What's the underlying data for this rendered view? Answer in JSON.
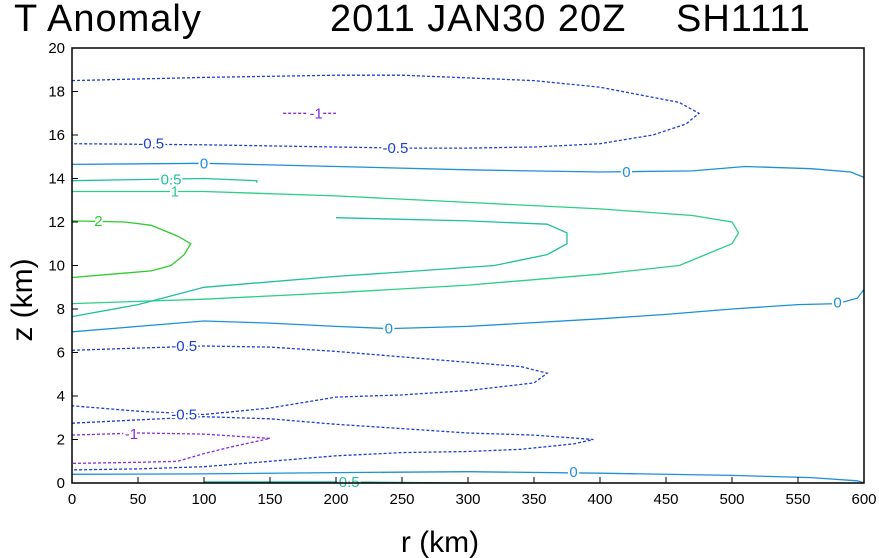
{
  "chart_data": {
    "type": "contour",
    "title_left": "T Anomaly",
    "title_date": "2011 JAN30 20Z",
    "title_storm": "SH1111",
    "xlabel": "r (km)",
    "ylabel": "z (km)",
    "xlim": [
      0,
      600
    ],
    "ylim": [
      0,
      20
    ],
    "xticks": [
      0,
      50,
      100,
      150,
      200,
      250,
      300,
      350,
      400,
      450,
      500,
      550,
      600
    ],
    "yticks": [
      0,
      2,
      4,
      6,
      8,
      10,
      12,
      14,
      16,
      18,
      20
    ],
    "colors": {
      "neg_1": "#8a2be2",
      "neg_05": "#1a3fd6",
      "zero": "#1e90d6",
      "pos_05": "#1fbfa0",
      "pos_1": "#2bcf8a",
      "pos_2": "#2ecc2e"
    },
    "contours": [
      {
        "level": "-0.5",
        "dash": true,
        "color_key": "neg_05",
        "points": [
          [
            0,
            18.5
          ],
          [
            100,
            18.65
          ],
          [
            200,
            18.75
          ],
          [
            250,
            18.75
          ],
          [
            350,
            18.5
          ],
          [
            400,
            18.2
          ],
          [
            460,
            17.5
          ],
          [
            475,
            17.0
          ],
          [
            465,
            16.5
          ],
          [
            440,
            16.0
          ],
          [
            400,
            15.6
          ],
          [
            350,
            15.45
          ],
          [
            300,
            15.4
          ],
          [
            250,
            15.4
          ],
          [
            200,
            15.45
          ],
          [
            100,
            15.55
          ],
          [
            0,
            15.6
          ]
        ]
      },
      {
        "level": "-1",
        "dash": true,
        "color_key": "neg_1",
        "points": [
          [
            160,
            17.0
          ],
          [
            200,
            17.0
          ]
        ]
      },
      {
        "level": "0",
        "dash": false,
        "color_key": "zero",
        "points": [
          [
            0,
            14.65
          ],
          [
            100,
            14.7
          ],
          [
            200,
            14.55
          ],
          [
            300,
            14.4
          ],
          [
            400,
            14.3
          ],
          [
            470,
            14.35
          ],
          [
            510,
            14.55
          ],
          [
            560,
            14.45
          ],
          [
            590,
            14.3
          ],
          [
            600,
            14.05
          ]
        ]
      },
      {
        "level": "0.5",
        "dash": false,
        "color_key": "pos_05",
        "points": [
          [
            0,
            13.9
          ],
          [
            100,
            14.0
          ],
          [
            140,
            13.9
          ],
          [
            140,
            13.8
          ]
        ]
      },
      {
        "level": "1",
        "dash": false,
        "color_key": "pos_1",
        "points": [
          [
            0,
            13.4
          ],
          [
            100,
            13.4
          ],
          [
            200,
            13.2
          ],
          [
            300,
            12.9
          ],
          [
            400,
            12.6
          ],
          [
            470,
            12.3
          ],
          [
            500,
            12.0
          ],
          [
            505,
            11.5
          ],
          [
            500,
            11.0
          ],
          [
            480,
            10.5
          ],
          [
            460,
            10.0
          ],
          [
            400,
            9.6
          ],
          [
            300,
            9.1
          ],
          [
            200,
            8.75
          ],
          [
            100,
            8.45
          ],
          [
            0,
            8.25
          ]
        ]
      },
      {
        "level": "0.5",
        "dash": false,
        "color_key": "pos_05",
        "points": [
          [
            200,
            12.2
          ],
          [
            300,
            12.05
          ],
          [
            360,
            11.9
          ],
          [
            375,
            11.5
          ],
          [
            375,
            11.0
          ],
          [
            360,
            10.5
          ],
          [
            320,
            10.0
          ],
          [
            250,
            9.7
          ],
          [
            200,
            9.5
          ],
          [
            100,
            9.0
          ],
          [
            50,
            8.2
          ],
          [
            0,
            7.65
          ]
        ]
      },
      {
        "level": "2",
        "dash": false,
        "color_key": "pos_2",
        "points": [
          [
            0,
            12.05
          ],
          [
            40,
            12.0
          ],
          [
            60,
            11.85
          ],
          [
            80,
            11.35
          ],
          [
            90,
            11.0
          ],
          [
            85,
            10.5
          ],
          [
            75,
            10.0
          ],
          [
            60,
            9.75
          ],
          [
            30,
            9.6
          ],
          [
            0,
            9.45
          ]
        ]
      },
      {
        "level": "0",
        "dash": false,
        "color_key": "zero",
        "points": [
          [
            0,
            6.95
          ],
          [
            50,
            7.2
          ],
          [
            100,
            7.45
          ],
          [
            150,
            7.35
          ],
          [
            200,
            7.2
          ],
          [
            240,
            7.1
          ],
          [
            300,
            7.2
          ],
          [
            400,
            7.55
          ],
          [
            450,
            7.75
          ],
          [
            500,
            8.0
          ],
          [
            550,
            8.2
          ],
          [
            580,
            8.25
          ],
          [
            595,
            8.5
          ],
          [
            600,
            8.9
          ]
        ]
      },
      {
        "level": "-0.5",
        "dash": true,
        "color_key": "neg_05",
        "points": [
          [
            0,
            6.1
          ],
          [
            50,
            6.2
          ],
          [
            100,
            6.3
          ],
          [
            150,
            6.25
          ],
          [
            200,
            6.05
          ],
          [
            250,
            5.8
          ],
          [
            300,
            5.55
          ],
          [
            340,
            5.35
          ],
          [
            360,
            5.05
          ],
          [
            350,
            4.6
          ],
          [
            300,
            4.25
          ],
          [
            250,
            4.05
          ],
          [
            200,
            3.95
          ],
          [
            150,
            3.45
          ],
          [
            100,
            3.15
          ],
          [
            50,
            3.3
          ],
          [
            0,
            3.55
          ]
        ]
      },
      {
        "level": "-0.5",
        "dash": true,
        "color_key": "neg_05",
        "points": [
          [
            0,
            2.75
          ],
          [
            50,
            2.9
          ],
          [
            100,
            3.05
          ],
          [
            150,
            2.95
          ],
          [
            200,
            2.7
          ],
          [
            250,
            2.5
          ],
          [
            300,
            2.3
          ],
          [
            350,
            2.2
          ],
          [
            395,
            2.0
          ],
          [
            380,
            1.8
          ],
          [
            340,
            1.55
          ],
          [
            300,
            1.45
          ],
          [
            250,
            1.4
          ],
          [
            200,
            1.25
          ],
          [
            150,
            1.0
          ],
          [
            100,
            0.75
          ],
          [
            50,
            0.65
          ],
          [
            0,
            0.6
          ]
        ]
      },
      {
        "level": "-1",
        "dash": true,
        "color_key": "neg_1",
        "points": [
          [
            0,
            2.2
          ],
          [
            50,
            2.3
          ],
          [
            100,
            2.25
          ],
          [
            150,
            2.05
          ],
          [
            120,
            1.65
          ],
          [
            100,
            1.35
          ],
          [
            80,
            1.0
          ],
          [
            50,
            0.95
          ],
          [
            0,
            0.9
          ]
        ]
      },
      {
        "level": "0",
        "dash": false,
        "color_key": "zero",
        "points": [
          [
            0,
            0.4
          ],
          [
            100,
            0.42
          ],
          [
            200,
            0.48
          ],
          [
            300,
            0.52
          ],
          [
            400,
            0.45
          ],
          [
            500,
            0.35
          ],
          [
            560,
            0.25
          ],
          [
            595,
            0.1
          ],
          [
            600,
            0.0
          ]
        ]
      },
      {
        "level": "0.5",
        "dash": false,
        "color_key": "pos_05",
        "points": [
          [
            100,
            0.05
          ],
          [
            200,
            0.05
          ],
          [
            300,
            0.0
          ]
        ]
      }
    ],
    "labels": [
      {
        "text": "-1",
        "x": 185,
        "y": 17.0,
        "color_key": "neg_1"
      },
      {
        "text": "-0.5",
        "x": 60,
        "y": 15.6,
        "color_key": "neg_05"
      },
      {
        "text": "-0.5",
        "x": 245,
        "y": 15.4,
        "color_key": "neg_05"
      },
      {
        "text": "0",
        "x": 100,
        "y": 14.7,
        "color_key": "zero"
      },
      {
        "text": "0",
        "x": 420,
        "y": 14.3,
        "color_key": "zero"
      },
      {
        "text": "0.5",
        "x": 75,
        "y": 13.95,
        "color_key": "pos_05"
      },
      {
        "text": "1",
        "x": 78,
        "y": 13.4,
        "color_key": "pos_1"
      },
      {
        "text": "2",
        "x": 20,
        "y": 12.05,
        "color_key": "pos_2"
      },
      {
        "text": "0",
        "x": 240,
        "y": 7.1,
        "color_key": "zero"
      },
      {
        "text": "0",
        "x": 580,
        "y": 8.3,
        "color_key": "zero"
      },
      {
        "text": "-0.5",
        "x": 85,
        "y": 6.3,
        "color_key": "neg_05"
      },
      {
        "text": "-0.5",
        "x": 85,
        "y": 3.15,
        "color_key": "neg_05"
      },
      {
        "text": "-1",
        "x": 45,
        "y": 2.25,
        "color_key": "neg_1"
      },
      {
        "text": "0",
        "x": 380,
        "y": 0.5,
        "color_key": "zero"
      },
      {
        "text": "0.5",
        "x": 210,
        "y": 0.05,
        "color_key": "pos_05"
      }
    ]
  }
}
